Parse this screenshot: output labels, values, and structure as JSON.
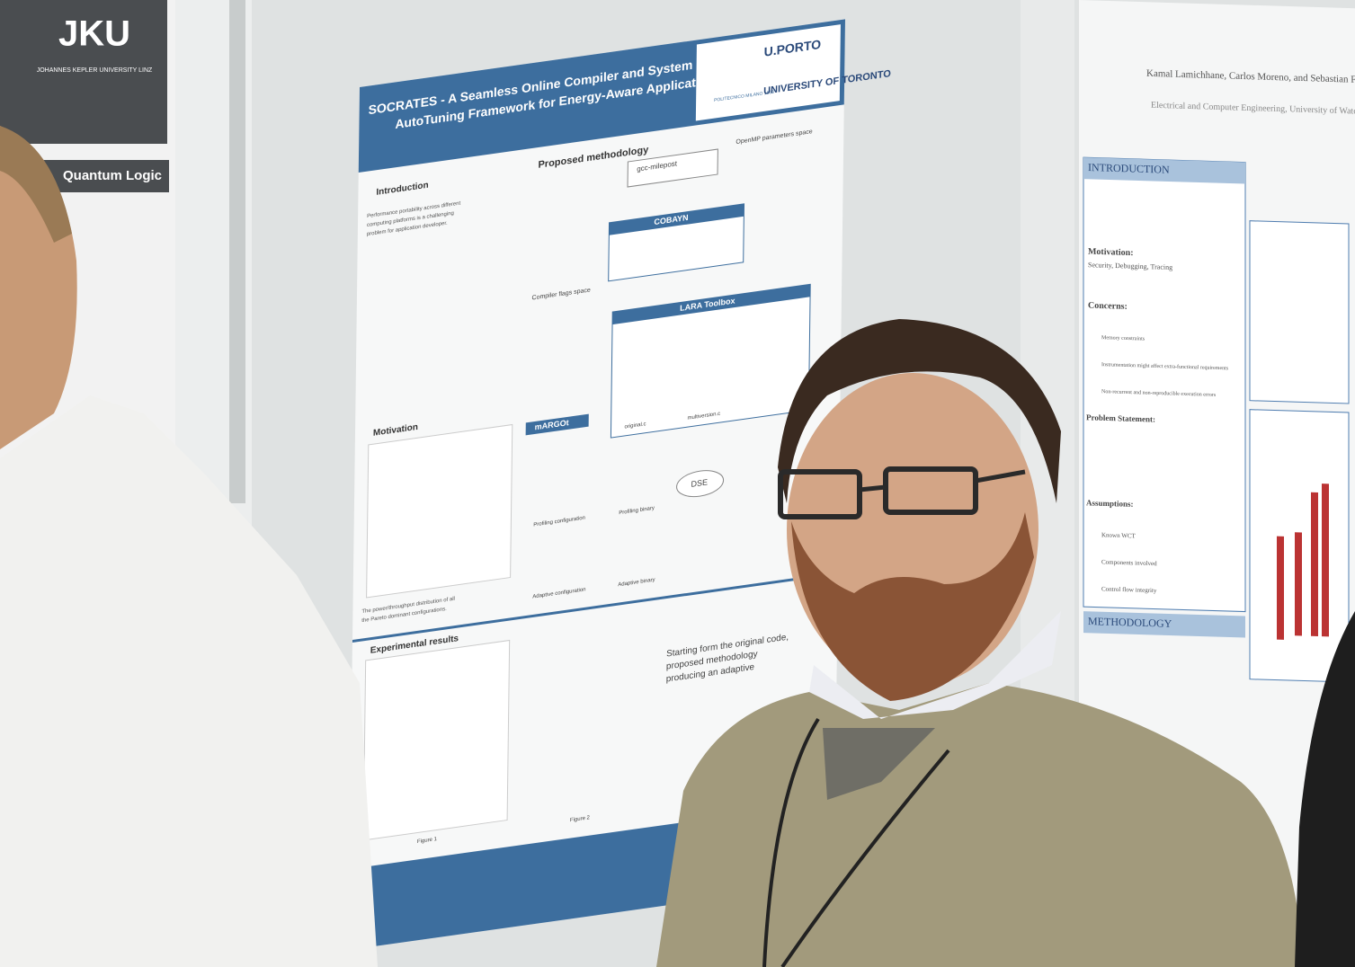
{
  "left_poster": {
    "logo": "JKU",
    "university": "JOHANNES KEPLER UNIVERSITY LINZ",
    "heading": "Quantum Logic"
  },
  "center_poster": {
    "title": "SOCRATES - A Seamless Online Compiler and System Runtime",
    "title_line2": "AutoTuning Framework for Energy-Aware Applications",
    "logos": [
      "POLITECNICO MILANO 1863",
      "U.PORTO",
      "UNIVERSITY OF TORONTO"
    ],
    "sections": [
      "Introduction",
      "Proposed methodology",
      "Motivation",
      "Experimental results"
    ],
    "introduction": [
      "Performance portability across different",
      "computing platforms is a challenging",
      "problem for application developer."
    ],
    "motivation_caption": [
      "The power/throughput distribution of all",
      "the Pareto dominant configurations."
    ],
    "boxes": [
      "gcc-milepost",
      "COBAYN",
      "LARA Toolbox",
      "mARGOt",
      "DSE"
    ],
    "labels": [
      "OpenMP parameters space",
      "Compiler flags space",
      "Profiling configuration",
      "Adaptive configuration",
      "Profiling binary",
      "Adaptive binary",
      "original.c",
      "multiversion.c"
    ],
    "figures": [
      "Figure 1",
      "Figure 2"
    ],
    "conclusion": [
      "Starting form the original code,",
      "proposed methodology",
      "producing an adaptive"
    ]
  },
  "right_poster": {
    "authors": "Kamal Lamichhane, Carlos Moreno, and Sebastian Fischmeister",
    "affiliation": "Electrical and Computer Engineering, University of Waterloo, Canada",
    "sections": [
      "INTRODUCTION",
      "METHODOLOGY"
    ],
    "motivation_label": "Motivation:",
    "motivation": "Security, Debugging, Tracing",
    "concerns_label": "Concerns:",
    "concerns": [
      "Memory constraints",
      "Instrumentation might affect extra-functional requirements",
      "Non-recurrent and non-reproducible execution errors"
    ],
    "problem_label": "Problem Statement:",
    "assumptions_label": "Assumptions:",
    "assumptions": [
      "Known WCT",
      "Components involved",
      "Control flow integrity"
    ]
  }
}
